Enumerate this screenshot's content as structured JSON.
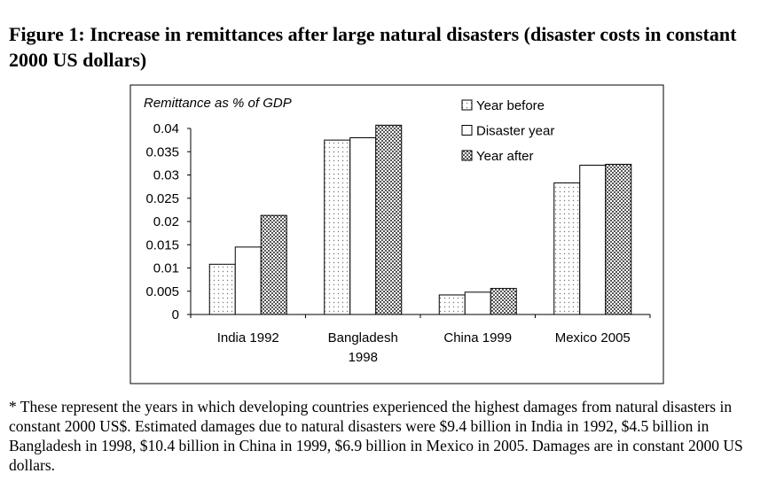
{
  "figure": {
    "title": "Figure 1: Increase in remittances after large natural disasters (disaster costs in constant 2000 US dollars)",
    "note": "* These represent the years in which developing countries experienced the highest damages from natural disasters in constant 2000 US$. Estimated damages due to natural disasters were $9.4 billion in India in 1992, $4.5 billion in Bangladesh in 1998, $10.4 billion in China in 1999, $6.9 billion in Mexico in 2005. Damages are in constant 2000 US dollars."
  },
  "chart_data": {
    "type": "bar",
    "title": "",
    "xlabel": "",
    "ylabel": "Remittance as % of GDP",
    "ylim": [
      0,
      0.04
    ],
    "yticks": [
      "0",
      "0.005",
      "0.01",
      "0.015",
      "0.02",
      "0.025",
      "0.03",
      "0.035",
      "0.04"
    ],
    "categories": [
      [
        "India 1992"
      ],
      [
        "Bangladesh",
        "1998"
      ],
      [
        "China 1999"
      ],
      [
        "Mexico 2005"
      ]
    ],
    "series": [
      {
        "name": "Year before",
        "values": [
          0.0108,
          0.0375,
          0.0042,
          0.0283
        ]
      },
      {
        "name": "Disaster year",
        "values": [
          0.0145,
          0.038,
          0.0048,
          0.0321
        ]
      },
      {
        "name": "Year after",
        "values": [
          0.0213,
          0.0407,
          0.0056,
          0.0323
        ]
      }
    ],
    "legend_position": "top-right",
    "grid": false
  }
}
